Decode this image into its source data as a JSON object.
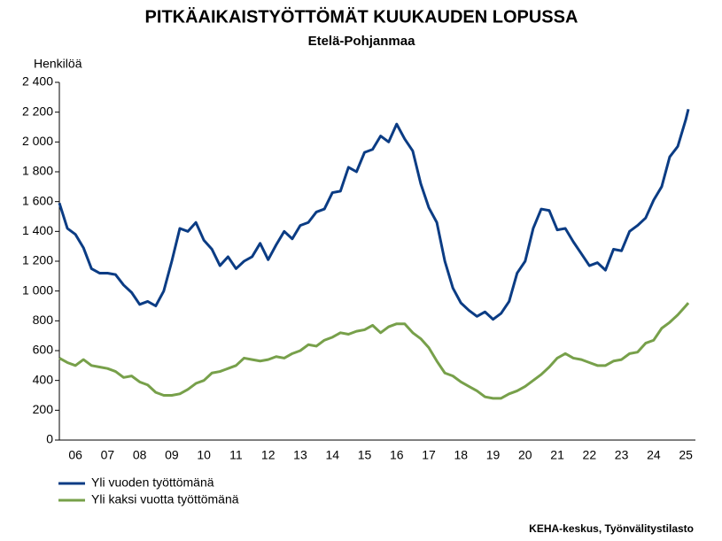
{
  "chart_data": {
    "type": "line",
    "title": "PITKÄAIKAISTYÖTTÖMÄT KUUKAUDEN LOPUSSA",
    "subtitle": "Etelä-Pohjanmaa",
    "y_label": "Henkilöä",
    "source": "KEHA-keskus, Työnvälitystilasto",
    "x": [
      2006,
      2006.25,
      2006.5,
      2006.75,
      2007,
      2007.25,
      2007.5,
      2007.75,
      2008,
      2008.25,
      2008.5,
      2008.75,
      2009,
      2009.25,
      2009.5,
      2009.75,
      2010,
      2010.25,
      2010.5,
      2010.75,
      2011,
      2011.25,
      2011.5,
      2011.75,
      2012,
      2012.25,
      2012.5,
      2012.75,
      2013,
      2013.25,
      2013.5,
      2013.75,
      2014,
      2014.25,
      2014.5,
      2014.75,
      2015,
      2015.25,
      2015.5,
      2015.75,
      2016,
      2016.25,
      2016.5,
      2016.75,
      2017,
      2017.25,
      2017.5,
      2017.75,
      2018,
      2018.25,
      2018.5,
      2018.75,
      2019,
      2019.25,
      2019.5,
      2019.75,
      2020,
      2020.25,
      2020.5,
      2020.75,
      2021,
      2021.25,
      2021.5,
      2021.75,
      2022,
      2022.25,
      2022.5,
      2022.75,
      2023,
      2023.25,
      2023.5,
      2023.75,
      2024,
      2024.25,
      2024.5,
      2024.75,
      2025,
      2025.25,
      2025.5,
      2025.58
    ],
    "series": [
      {
        "name": "Yli vuoden työttömänä",
        "color": "#0b3c84",
        "values": [
          1590,
          1420,
          1380,
          1290,
          1150,
          1120,
          1120,
          1110,
          1040,
          990,
          910,
          930,
          900,
          1000,
          1200,
          1420,
          1400,
          1460,
          1340,
          1280,
          1170,
          1230,
          1150,
          1200,
          1230,
          1320,
          1210,
          1310,
          1400,
          1350,
          1440,
          1460,
          1530,
          1550,
          1660,
          1670,
          1830,
          1800,
          1930,
          1950,
          2040,
          2000,
          2120,
          2020,
          1940,
          1720,
          1560,
          1460,
          1200,
          1020,
          920,
          870,
          830,
          860,
          810,
          850,
          930,
          1120,
          1200,
          1420,
          1550,
          1540,
          1410,
          1420,
          1330,
          1250,
          1170,
          1190,
          1140,
          1280,
          1270,
          1400,
          1440,
          1490,
          1610,
          1700,
          1900,
          1970,
          2150,
          2220
        ]
      },
      {
        "name": "Yli kaksi vuotta työttömänä",
        "color": "#77a04a",
        "values": [
          550,
          520,
          500,
          540,
          500,
          490,
          480,
          460,
          420,
          430,
          390,
          370,
          320,
          300,
          300,
          310,
          340,
          380,
          400,
          450,
          460,
          480,
          500,
          550,
          540,
          530,
          540,
          560,
          550,
          580,
          600,
          640,
          630,
          670,
          690,
          720,
          710,
          730,
          740,
          770,
          720,
          760,
          780,
          780,
          720,
          680,
          620,
          530,
          450,
          430,
          390,
          360,
          330,
          290,
          280,
          280,
          310,
          330,
          360,
          400,
          440,
          490,
          550,
          580,
          550,
          540,
          520,
          500,
          500,
          530,
          540,
          580,
          590,
          650,
          670,
          750,
          790,
          840,
          900,
          920
        ]
      }
    ],
    "xlim": [
      2006,
      2025.8
    ],
    "xticks": [
      {
        "value": 2006.5,
        "label": "06"
      },
      {
        "value": 2007.5,
        "label": "07"
      },
      {
        "value": 2008.5,
        "label": "08"
      },
      {
        "value": 2009.5,
        "label": "09"
      },
      {
        "value": 2010.5,
        "label": "10"
      },
      {
        "value": 2011.5,
        "label": "11"
      },
      {
        "value": 2012.5,
        "label": "12"
      },
      {
        "value": 2013.5,
        "label": "13"
      },
      {
        "value": 2014.5,
        "label": "14"
      },
      {
        "value": 2015.5,
        "label": "15"
      },
      {
        "value": 2016.5,
        "label": "16"
      },
      {
        "value": 2017.5,
        "label": "17"
      },
      {
        "value": 2018.5,
        "label": "18"
      },
      {
        "value": 2019.5,
        "label": "19"
      },
      {
        "value": 2020.5,
        "label": "20"
      },
      {
        "value": 2021.5,
        "label": "21"
      },
      {
        "value": 2022.5,
        "label": "22"
      },
      {
        "value": 2023.5,
        "label": "23"
      },
      {
        "value": 2024.5,
        "label": "24"
      },
      {
        "value": 2025.5,
        "label": "25"
      }
    ],
    "ylim": [
      0,
      2400
    ],
    "yticks": [
      0,
      200,
      400,
      600,
      800,
      {
        "value": 1000,
        "label": "1 000"
      },
      {
        "value": 1200,
        "label": "1 200"
      },
      {
        "value": 1400,
        "label": "1 400"
      },
      {
        "value": 1600,
        "label": "1 600"
      },
      {
        "value": 1800,
        "label": "1 800"
      },
      {
        "value": 2000,
        "label": "2 000"
      },
      {
        "value": 2200,
        "label": "2 200"
      },
      {
        "value": 2400,
        "label": "2 400"
      }
    ],
    "grid": false,
    "legend": "bottom-left"
  }
}
